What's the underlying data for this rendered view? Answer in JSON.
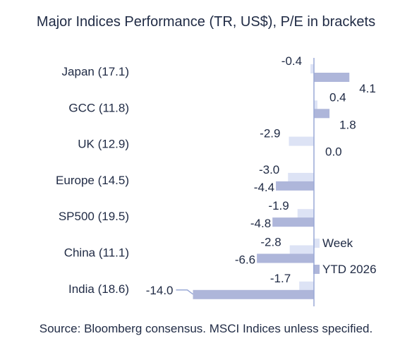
{
  "chart_data": {
    "type": "bar",
    "orientation": "horizontal",
    "title": "Major Indices Performance (TR, US$), P/E in brackets",
    "source": "Source: Bloomberg consensus. MSCI Indices unless specified.",
    "categories": [
      "Japan (17.1)",
      "GCC (11.8)",
      "UK (12.9)",
      "Europe (14.5)",
      "SP500 (19.5)",
      "China (11.1)",
      "India (18.6)"
    ],
    "series": [
      {
        "name": "Week",
        "values": [
          -0.4,
          0.4,
          -2.9,
          -3.0,
          -1.9,
          -2.8,
          -1.7
        ],
        "labels": [
          "-0.4",
          "0.4",
          "-2.9",
          "-3.0",
          "-1.9",
          "-2.8",
          "-1.7"
        ],
        "color": "#dde3f5"
      },
      {
        "name": "YTD 2026",
        "values": [
          4.1,
          1.8,
          0.0,
          -4.4,
          -4.8,
          -6.6,
          -14.0
        ],
        "labels": [
          "4.1",
          "1.8",
          "0.0",
          "-4.4",
          "-4.8",
          "-6.6",
          "-14.0"
        ],
        "color": "#aeb6da"
      }
    ],
    "legend": "right",
    "grid": false
  }
}
